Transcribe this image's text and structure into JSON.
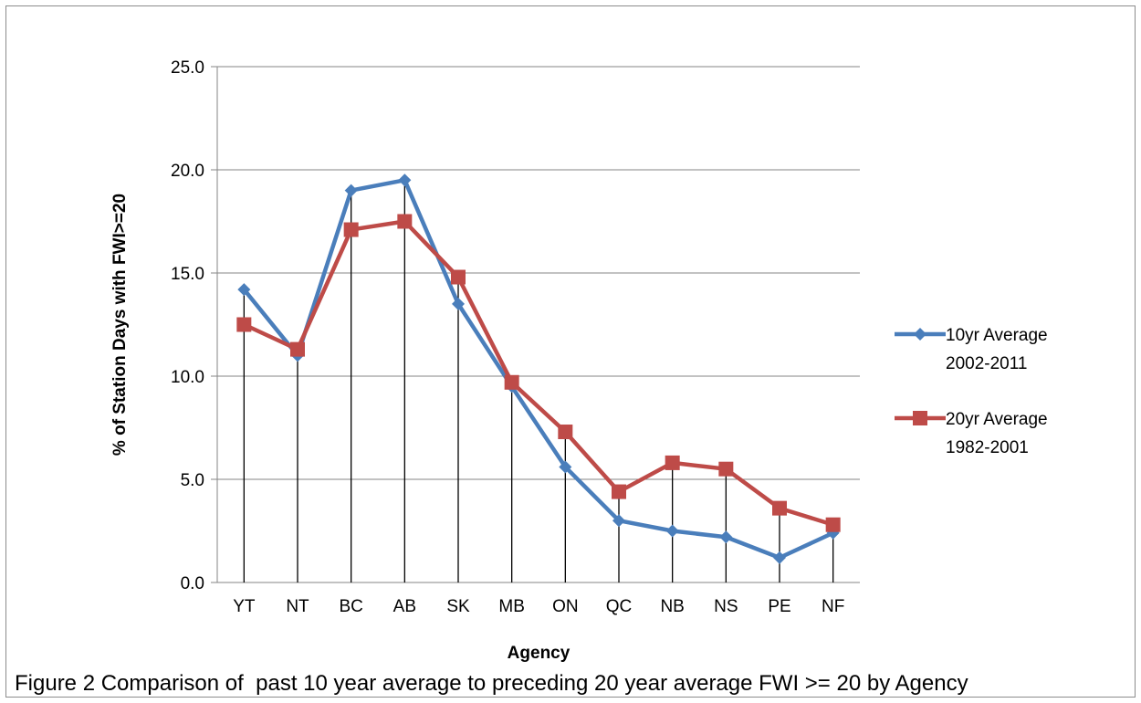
{
  "chart_data": {
    "type": "line",
    "categories": [
      "YT",
      "NT",
      "BC",
      "AB",
      "SK",
      "MB",
      "ON",
      "QC",
      "NB",
      "NS",
      "PE",
      "NF"
    ],
    "series": [
      {
        "name": "10yr Average 2002-2011",
        "name_lines": [
          "10yr Average",
          "2002-2011"
        ],
        "color": "#4a7ebb",
        "marker": "diamond",
        "values": [
          14.2,
          11.0,
          19.0,
          19.5,
          13.5,
          9.5,
          5.6,
          3.0,
          2.5,
          2.2,
          1.2,
          2.4
        ]
      },
      {
        "name": "20yr Average 1982-2001",
        "name_lines": [
          "20yr Average",
          "1982-2001"
        ],
        "color": "#be4b48",
        "marker": "square",
        "values": [
          12.5,
          11.3,
          17.1,
          17.5,
          14.8,
          9.7,
          7.3,
          4.4,
          5.8,
          5.5,
          3.6,
          2.8
        ]
      }
    ],
    "drop_lines": true,
    "ylim": [
      0,
      25
    ],
    "yticks": [
      "0.0",
      "5.0",
      "10.0",
      "15.0",
      "20.0",
      "25.0"
    ],
    "xlabel": "Agency",
    "ylabel": "% of Station Days with FWI>=20",
    "grid": "horizontal",
    "legend_position": "right"
  },
  "caption": "Figure 2 Comparison of  past 10 year average to preceding 20 year average FWI >= 20 by Agency"
}
